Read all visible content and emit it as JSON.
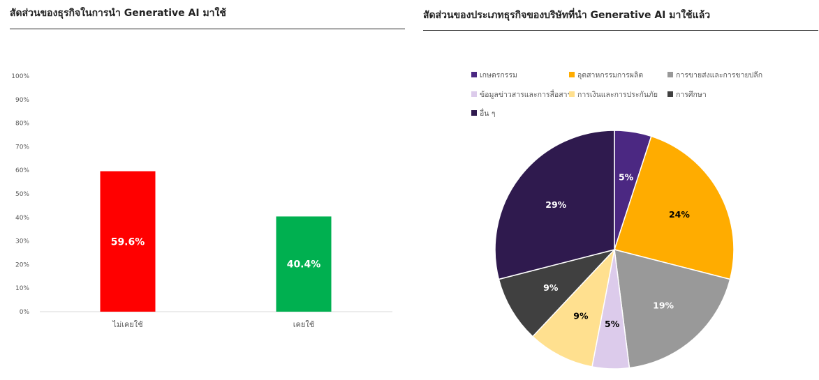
{
  "left_panel": {
    "title": "สัดส่วนของธุรกิจในการนำ  Generative AI มาใช้"
  },
  "right_panel": {
    "title": "สัดส่วนของประเภทธุรกิจของบริษัทที่นำ  Generative AI มาใช้แล้ว"
  },
  "chart_data": [
    {
      "type": "bar",
      "categories": [
        "ไม่เคยใช้",
        "เคยใช้"
      ],
      "values": [
        59.6,
        40.4
      ],
      "data_labels": [
        "59.6%",
        "40.4%"
      ],
      "colors": [
        "#FF0000",
        "#00B050"
      ],
      "ylim": [
        0,
        100
      ],
      "yticks": [
        "0%",
        "10%",
        "20%",
        "30%",
        "40%",
        "50%",
        "60%",
        "70%",
        "80%",
        "90%",
        "100%"
      ],
      "grid": false,
      "legend": "none"
    },
    {
      "type": "pie",
      "labels": [
        "เกษตรกรรม",
        "อุตสาหกรรมการผลิต",
        "การขายส่งและการขายปลีก",
        "ข้อมูลข่าวสารและการสื่อสาร",
        "การเงินและการประกันภัย",
        "การศึกษา",
        "อื่น ๆ"
      ],
      "values": [
        5,
        24,
        19,
        5,
        9,
        9,
        29
      ],
      "data_labels": [
        "5%",
        "24%",
        "19%",
        "5%",
        "9%",
        "9%",
        "29%"
      ],
      "colors": [
        "#4B2882",
        "#FFAC00",
        "#999999",
        "#DCCBEB",
        "#FFE08F",
        "#404040",
        "#2F1A4E"
      ],
      "label_colors": [
        "#ffffff",
        "#000000",
        "#ffffff",
        "#000000",
        "#000000",
        "#ffffff",
        "#ffffff"
      ],
      "legend": "top"
    }
  ]
}
